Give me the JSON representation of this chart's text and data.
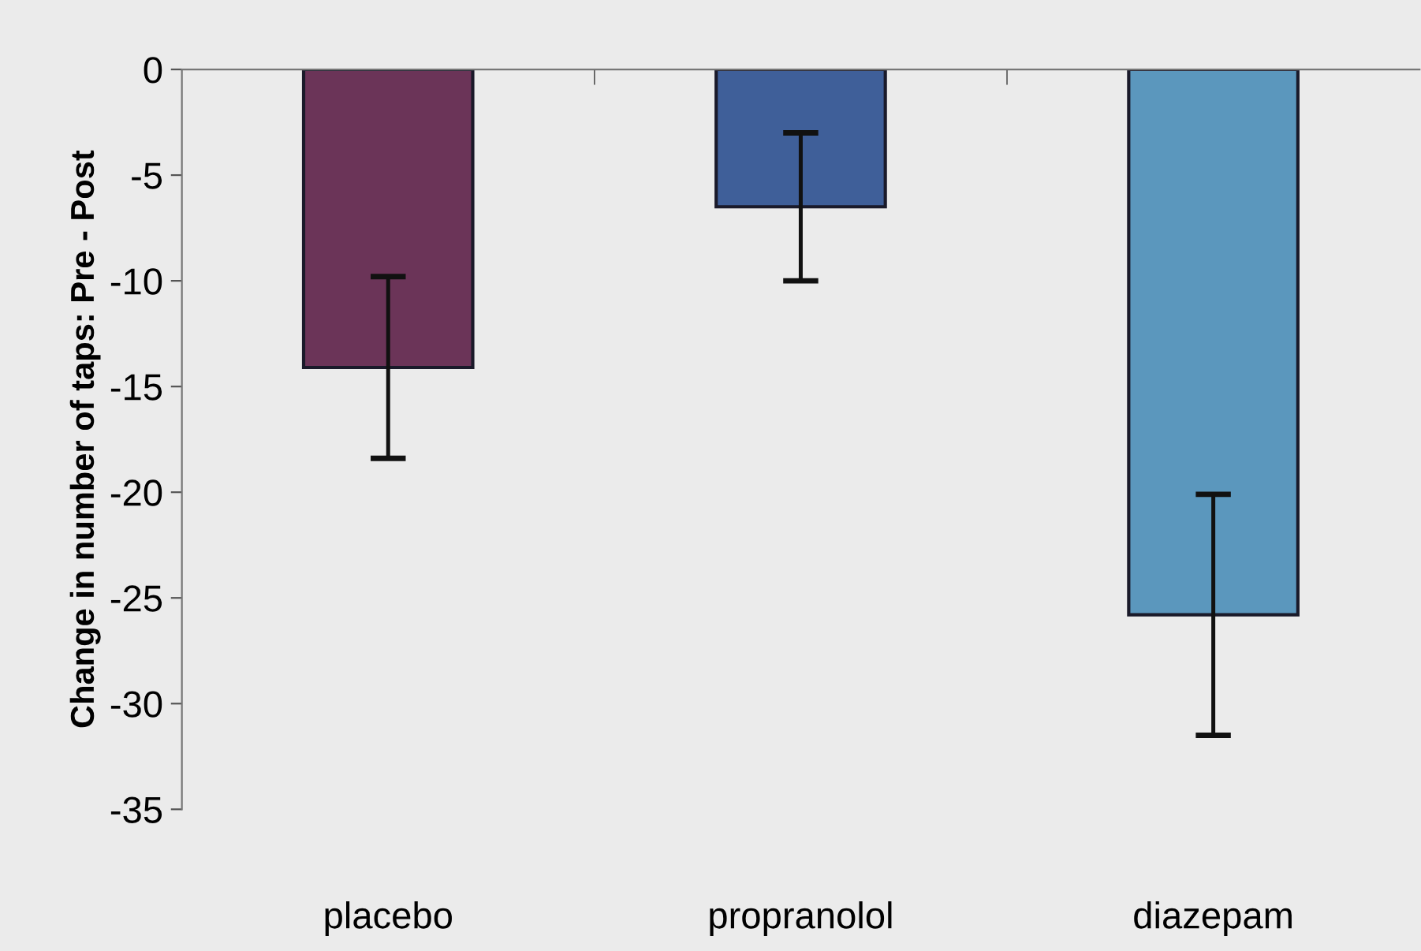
{
  "chart_data": {
    "type": "bar",
    "ylabel": "Change in number of taps: Pre - Post",
    "categories": [
      "placebo",
      "propranolol",
      "diazepam"
    ],
    "values": [
      -14.1,
      -6.5,
      -25.8
    ],
    "errors": [
      4.3,
      3.5,
      5.7
    ],
    "colors": [
      "#6b3458",
      "#3f5f99",
      "#5b97bd"
    ],
    "ylim": [
      -35,
      0
    ],
    "yticks": [
      -35,
      -30,
      -25,
      -20,
      -15,
      -10,
      -5,
      0
    ],
    "grid": false,
    "legend": false
  }
}
